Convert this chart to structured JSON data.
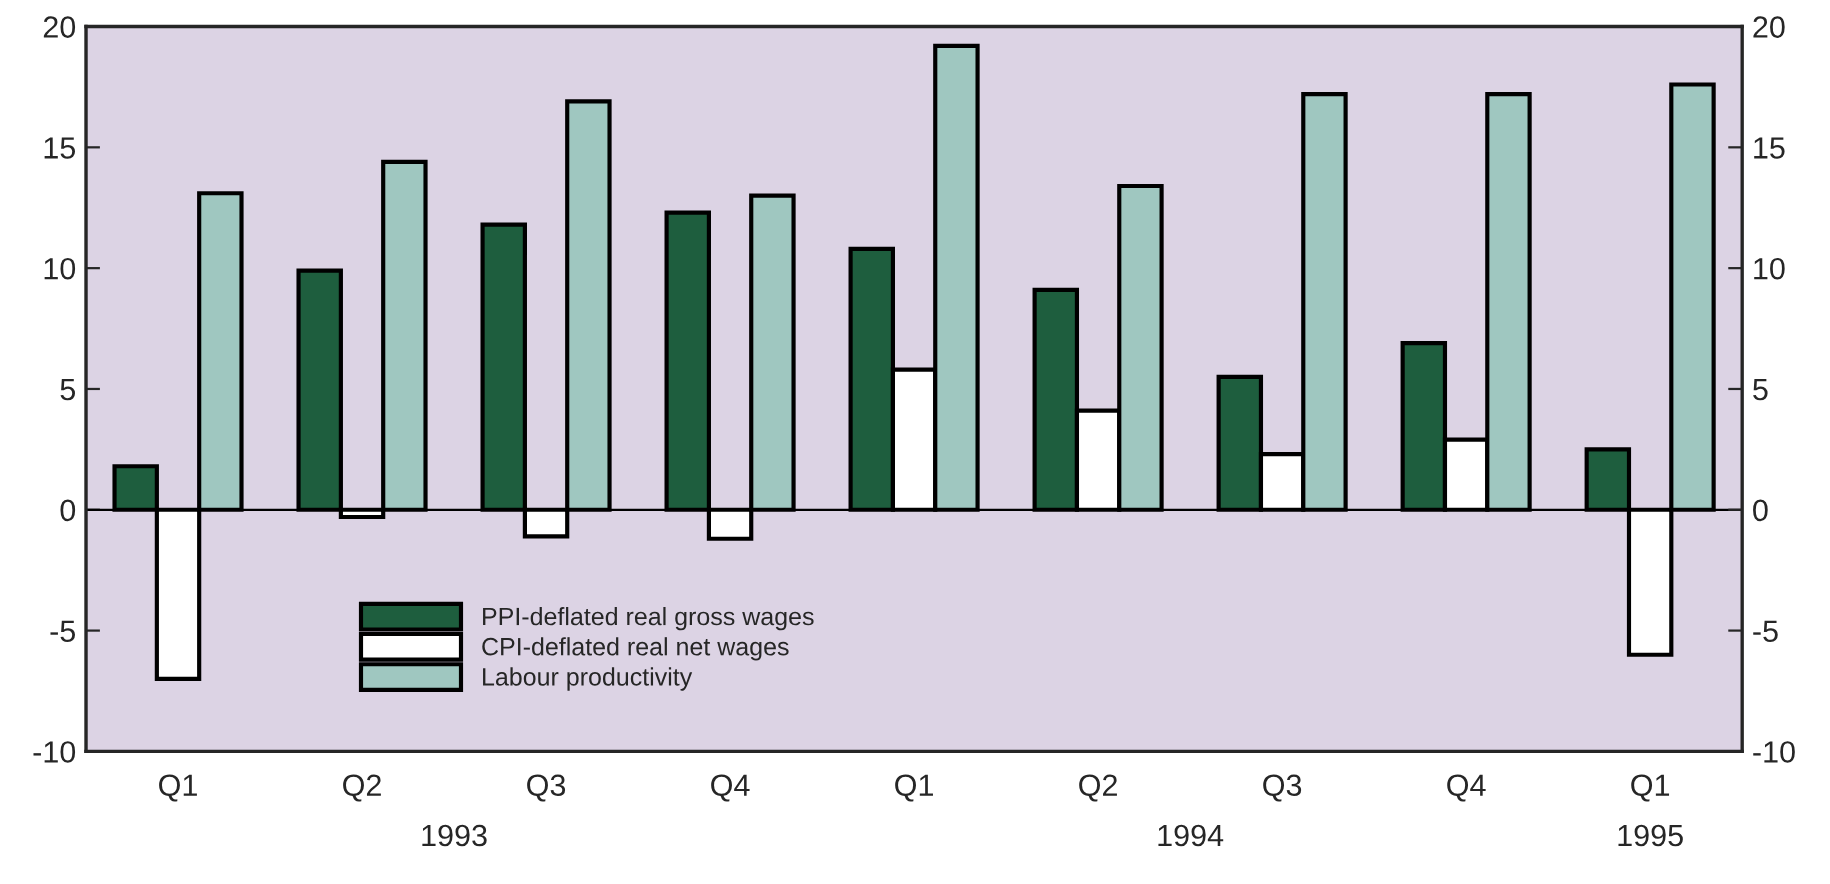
{
  "chart_data": {
    "type": "bar",
    "categories": [
      "Q1",
      "Q2",
      "Q3",
      "Q4",
      "Q1",
      "Q2",
      "Q3",
      "Q4",
      "Q1"
    ],
    "series": [
      {
        "name": "PPI-deflated real gross wages",
        "color": "#1e5e3e",
        "values": [
          1.8,
          9.9,
          11.8,
          12.3,
          10.8,
          9.1,
          5.5,
          6.9,
          2.5
        ]
      },
      {
        "name": "CPI-deflated real net wages",
        "color": "#ffffff",
        "values": [
          -7.0,
          -0.3,
          -1.1,
          -1.2,
          5.8,
          4.1,
          2.3,
          2.9,
          -6.0
        ]
      },
      {
        "name": "Labour productivity",
        "color": "#9fc7c0",
        "values": [
          13.1,
          14.4,
          16.9,
          13.0,
          19.2,
          13.4,
          17.2,
          17.2,
          17.6
        ]
      }
    ],
    "ylim": [
      -10,
      20
    ],
    "yticks": [
      -10,
      -5,
      0,
      5,
      10,
      15,
      20
    ],
    "y2lim": [
      -10,
      20
    ],
    "y2ticks": [
      -10,
      -5,
      0,
      5,
      10,
      15,
      20
    ],
    "annotations": [
      "1993",
      "1994",
      "1995"
    ],
    "ref_lines": [
      {
        "axis": "y",
        "value": 0,
        "color": "#000000"
      }
    ],
    "legend": "bottom left",
    "grid": false
  }
}
